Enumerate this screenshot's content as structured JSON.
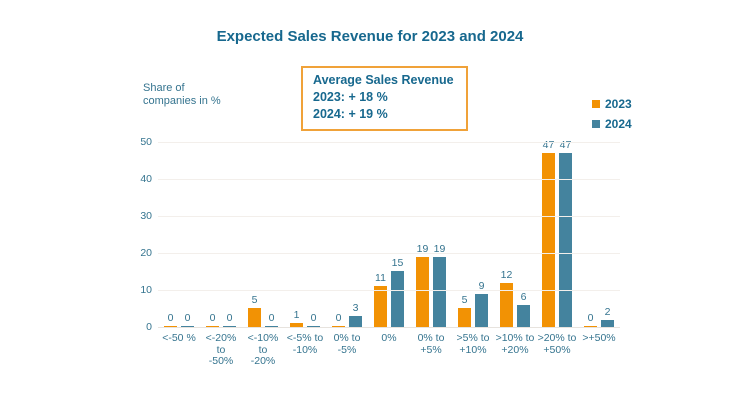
{
  "page": {
    "background": "#FFFFFF"
  },
  "chart_data": {
    "type": "bar",
    "title": "Expected Sales Revenue for 2023 and 2024",
    "ylabel": "Share of\ncompanies in %",
    "categories": [
      "<-50 %",
      "<-20% to -50%",
      "<-10% to -20%",
      "<-5% to -10%",
      "0% to -5%",
      "0%",
      "0% to +5%",
      ">5% to +10%",
      ">10% to +20%",
      ">20% to +50%",
      ">+50%"
    ],
    "tick_labels": [
      "<-50 %",
      "<-20% to\n-50%",
      "<-10% to\n-20%",
      "<-5% to\n-10%",
      "0% to\n-5%",
      "0%",
      "0% to\n+5%",
      ">5% to\n+10%",
      ">10% to\n+20%",
      ">20% to\n+50%",
      ">+50%"
    ],
    "series": [
      {
        "name": "2023",
        "color": "#F29204",
        "values": [
          0,
          0,
          5,
          1,
          0,
          11,
          19,
          5,
          12,
          47,
          0
        ]
      },
      {
        "name": "2024",
        "color": "#44839E",
        "values": [
          0,
          0,
          0,
          0,
          3,
          15,
          19,
          9,
          6,
          47,
          2
        ]
      }
    ],
    "ylim": [
      0,
      50
    ],
    "yticks": [
      0,
      10,
      20,
      30,
      40,
      50
    ],
    "grid": true,
    "legend_position": "right",
    "value_labels_shown": true,
    "annotation": {
      "title": "Average Sales Revenue",
      "lines": [
        "2023: + 18 %",
        "2024: + 19 %"
      ]
    }
  },
  "colors": {
    "title_text": "#17688E",
    "axis_text": "#35748F",
    "gridline": "#F3EFEB",
    "baseline": "#E7E3DE",
    "annotation_border": "#F0A239",
    "series_2023": "#F29204",
    "series_2024": "#44839E"
  }
}
